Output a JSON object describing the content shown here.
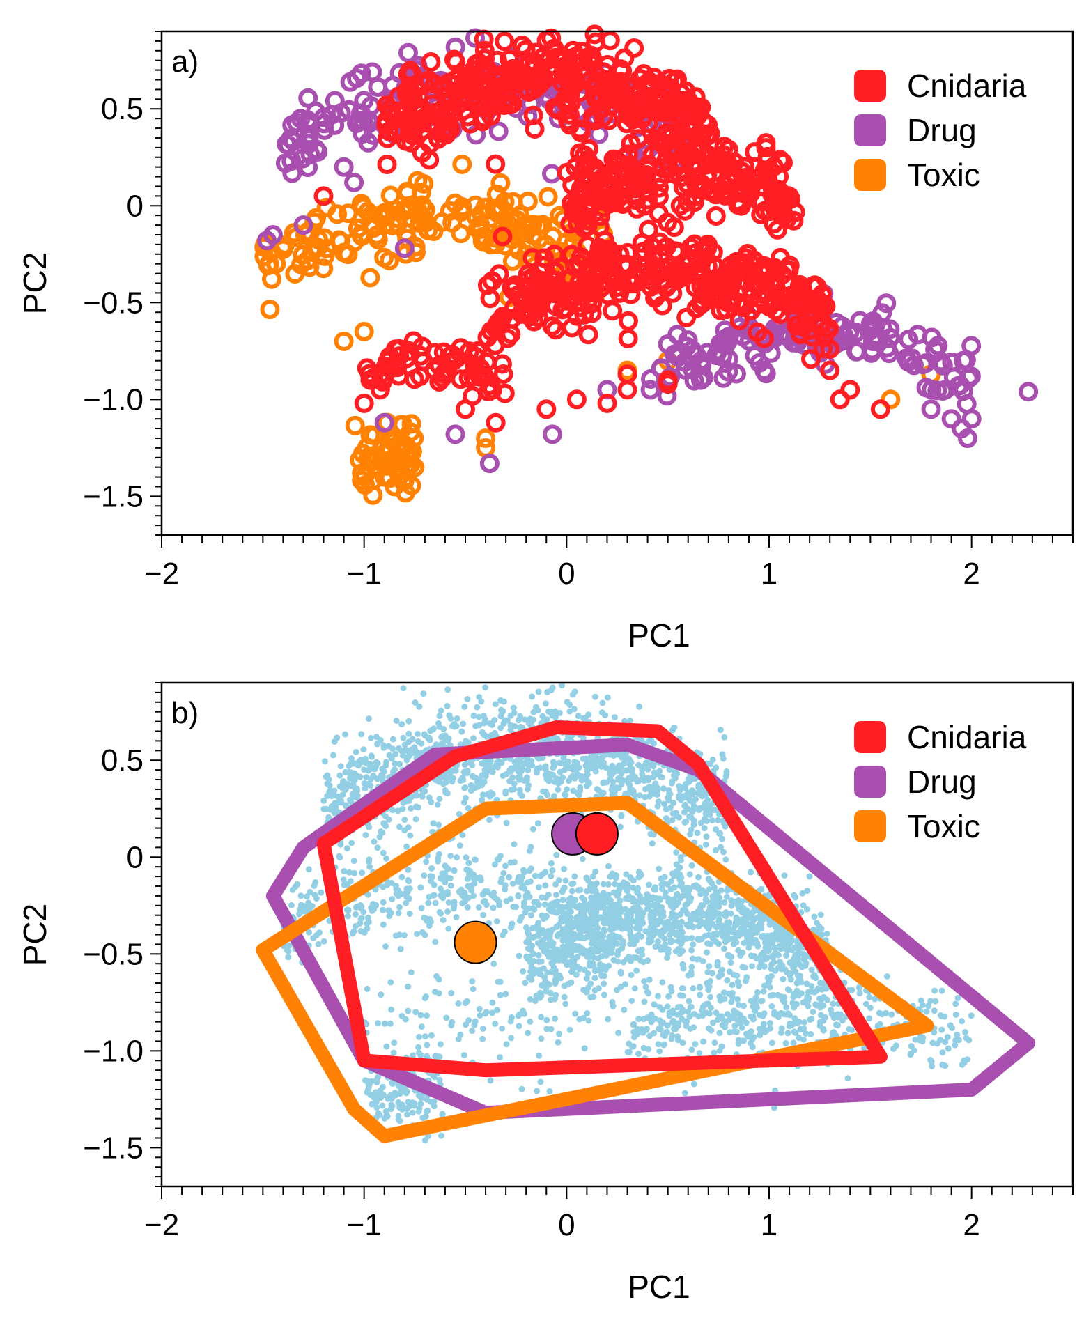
{
  "colors": {
    "cnidaria": "#ff1e23",
    "drug": "#a84faf",
    "toxic": "#ff8205",
    "background_points": "#93cfe4",
    "axis": "#000000"
  },
  "chart_data": [
    {
      "type": "scatter",
      "panel_label": "a)",
      "xlabel": "PC1",
      "ylabel": "PC2",
      "xlim": [
        -2,
        2.5
      ],
      "ylim": [
        -1.7,
        0.9
      ],
      "x_ticks": [
        -2,
        -1,
        0,
        1,
        2
      ],
      "x_tick_labels": [
        "−2",
        "−1",
        "0",
        "1",
        "2"
      ],
      "y_ticks": [
        -1.5,
        -1.0,
        -0.5,
        0,
        0.5
      ],
      "y_tick_labels": [
        "−1.5",
        "−1.0",
        "−0.5",
        "0",
        "0.5"
      ],
      "grid": false,
      "legend_position": "top-right",
      "legend": [
        "Cnidaria",
        "Drug",
        "Toxic"
      ],
      "series": [
        {
          "name": "Cnidaria",
          "color": "#ff1e23",
          "marker": "open-circle",
          "clusters": [
            {
              "x_range": [
                -0.9,
                0.7
              ],
              "y_center": 0.4,
              "amplitude": 0.28,
              "thickness": 0.32,
              "count": 340
            },
            {
              "x_range": [
                0.0,
                1.15
              ],
              "y_center": 0.0,
              "amplitude": 0.18,
              "thickness": 0.28,
              "count": 240
            },
            {
              "x_range": [
                -0.4,
                1.3
              ],
              "y_center": -0.55,
              "amplitude": 0.2,
              "thickness": 0.3,
              "count": 340
            },
            {
              "x_range": [
                -1.0,
                -0.3
              ],
              "y_center": -0.9,
              "amplitude": 0.1,
              "thickness": 0.16,
              "count": 60
            }
          ],
          "points": [
            [
              -1.0,
              -1.02
            ],
            [
              -0.97,
              -0.9
            ],
            [
              -0.5,
              -1.05
            ],
            [
              -0.35,
              -1.12
            ],
            [
              -0.1,
              -1.05
            ],
            [
              0.05,
              -1.0
            ],
            [
              0.2,
              -1.02
            ],
            [
              0.3,
              -0.95
            ],
            [
              0.5,
              -0.9
            ],
            [
              1.15,
              -0.42
            ],
            [
              1.2,
              -0.55
            ],
            [
              1.3,
              -0.85
            ],
            [
              1.35,
              -1.0
            ],
            [
              1.4,
              -0.95
            ],
            [
              1.55,
              -1.05
            ],
            [
              -1.2,
              0.05
            ],
            [
              0.5,
              -0.92
            ],
            [
              0.3,
              -0.87
            ]
          ]
        },
        {
          "name": "Drug",
          "color": "#a84faf",
          "marker": "open-circle",
          "clusters": [
            {
              "x_range": [
                -1.4,
                0.6
              ],
              "y_center": 0.3,
              "amplitude": 0.35,
              "thickness": 0.3,
              "count": 160
            },
            {
              "x_range": [
                0.4,
                2.0
              ],
              "y_center": -0.9,
              "amplitude": 0.25,
              "thickness": 0.24,
              "count": 150
            }
          ],
          "points": [
            [
              -1.48,
              -0.18
            ],
            [
              -1.45,
              -0.15
            ],
            [
              -1.3,
              -0.1
            ],
            [
              -1.1,
              0.2
            ],
            [
              -1.05,
              0.12
            ],
            [
              -0.8,
              -0.22
            ],
            [
              -0.9,
              -1.12
            ],
            [
              -0.55,
              -1.18
            ],
            [
              -0.38,
              -1.33
            ],
            [
              -0.07,
              -1.18
            ],
            [
              0.2,
              -0.95
            ],
            [
              1.8,
              -1.05
            ],
            [
              1.9,
              -1.1
            ],
            [
              1.95,
              -1.15
            ],
            [
              1.98,
              -1.2
            ],
            [
              2.0,
              -1.1
            ],
            [
              2.28,
              -0.96
            ]
          ]
        },
        {
          "name": "Toxic",
          "color": "#ff8205",
          "marker": "open-circle",
          "clusters": [
            {
              "x_range": [
                -1.5,
                0.2
              ],
              "y_center": -0.3,
              "amplitude": 0.25,
              "thickness": 0.26,
              "count": 170
            },
            {
              "x_range": [
                -1.05,
                -0.75
              ],
              "y_center": -1.28,
              "amplitude": 0.0,
              "thickness": 0.3,
              "count": 60
            }
          ],
          "points": [
            [
              -1.1,
              -0.7
            ],
            [
              -1.0,
              -0.65
            ],
            [
              -0.9,
              -1.4
            ],
            [
              -0.85,
              -1.45
            ],
            [
              -0.8,
              -1.42
            ],
            [
              -0.75,
              -1.35
            ],
            [
              -0.4,
              -1.25
            ],
            [
              -0.4,
              -1.2
            ],
            [
              0.3,
              -0.85
            ],
            [
              0.5,
              -0.8
            ],
            [
              1.6,
              -1.0
            ],
            [
              1.8,
              -0.87
            ],
            [
              -0.35,
              -0.2
            ],
            [
              -0.2,
              -0.25
            ]
          ]
        }
      ]
    },
    {
      "type": "scatter",
      "panel_label": "b)",
      "xlabel": "PC1",
      "ylabel": "PC2",
      "xlim": [
        -2,
        2.5
      ],
      "ylim": [
        -1.7,
        0.9
      ],
      "x_ticks": [
        -2,
        -1,
        0,
        1,
        2
      ],
      "x_tick_labels": [
        "−2",
        "−1",
        "0",
        "1",
        "2"
      ],
      "y_ticks": [
        -1.5,
        -1.0,
        -0.5,
        0,
        0.5
      ],
      "y_tick_labels": [
        "−1.5",
        "−1.0",
        "−0.5",
        "0",
        "0.5"
      ],
      "grid": false,
      "legend_position": "top-right",
      "legend": [
        "Cnidaria",
        "Drug",
        "Toxic"
      ],
      "background_points": {
        "color": "#93cfe4",
        "clusters": [
          {
            "x_range": [
              -1.2,
              0.8
            ],
            "y_center": 0.25,
            "amplitude": 0.3,
            "thickness": 0.4,
            "count": 1400
          },
          {
            "x_range": [
              -0.2,
              1.3
            ],
            "y_center": -0.55,
            "amplitude": 0.25,
            "thickness": 0.35,
            "count": 1300
          },
          {
            "x_range": [
              -1.4,
              0.3
            ],
            "y_center": -0.35,
            "amplitude": 0.2,
            "thickness": 0.35,
            "count": 500
          },
          {
            "x_range": [
              -1.0,
              -0.6
            ],
            "y_center": -1.25,
            "amplitude": 0.0,
            "thickness": 0.3,
            "count": 150
          },
          {
            "x_range": [
              0.3,
              2.0
            ],
            "y_center": -0.95,
            "amplitude": 0.15,
            "thickness": 0.3,
            "count": 350
          },
          {
            "x_range": [
              -1.0,
              1.5
            ],
            "y_center": -0.9,
            "amplitude": 0.1,
            "thickness": 0.45,
            "count": 300
          }
        ]
      },
      "hulls": [
        {
          "name": "Drug",
          "color": "#a84faf",
          "vertices": [
            [
              -0.65,
              0.53
            ],
            [
              0.3,
              0.58
            ],
            [
              0.65,
              0.45
            ],
            [
              2.28,
              -0.96
            ],
            [
              2.0,
              -1.2
            ],
            [
              -0.4,
              -1.32
            ],
            [
              -1.0,
              -1.05
            ],
            [
              -1.45,
              -0.2
            ],
            [
              -1.3,
              0.05
            ]
          ]
        },
        {
          "name": "Toxic",
          "color": "#ff8205",
          "vertices": [
            [
              -0.4,
              0.25
            ],
            [
              0.3,
              0.28
            ],
            [
              1.78,
              -0.87
            ],
            [
              -0.9,
              -1.44
            ],
            [
              -1.05,
              -1.3
            ],
            [
              -1.5,
              -0.48
            ]
          ]
        },
        {
          "name": "Cnidaria",
          "color": "#ff1e23",
          "vertices": [
            [
              -0.55,
              0.52
            ],
            [
              -0.05,
              0.67
            ],
            [
              0.45,
              0.65
            ],
            [
              0.65,
              0.48
            ],
            [
              1.55,
              -1.03
            ],
            [
              -0.4,
              -1.1
            ],
            [
              -1.0,
              -1.05
            ],
            [
              -1.2,
              0.07
            ]
          ]
        }
      ],
      "centroids": [
        {
          "name": "Drug",
          "color": "#a84faf",
          "x": 0.03,
          "y": 0.12
        },
        {
          "name": "Cnidaria",
          "color": "#ff1e23",
          "x": 0.15,
          "y": 0.12
        },
        {
          "name": "Toxic",
          "color": "#ff8205",
          "x": -0.45,
          "y": -0.44
        }
      ]
    }
  ]
}
